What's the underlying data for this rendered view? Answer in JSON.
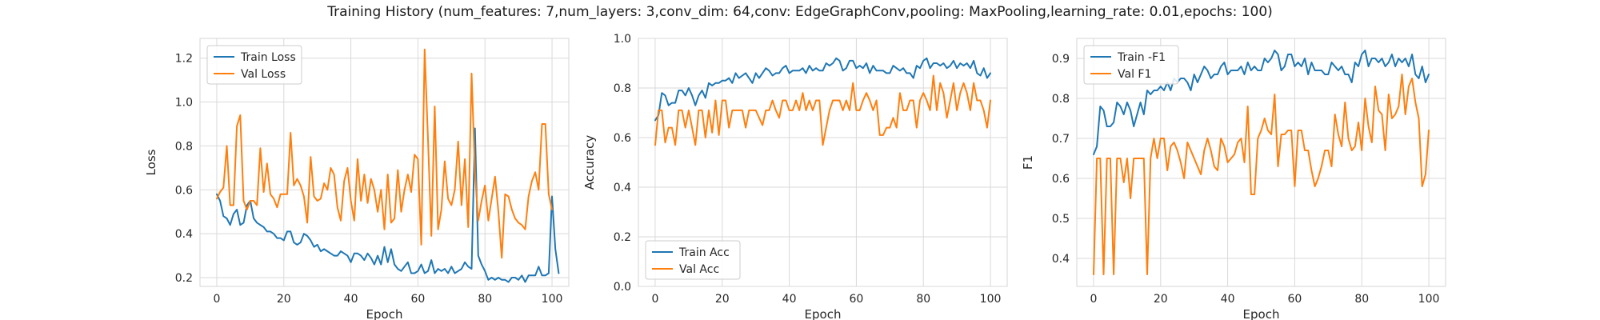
{
  "figure": {
    "title": "Training History (num_features: 7,num_layers: 3,conv_dim: 64,conv: EdgeGraphConv,pooling: MaxPooling,learning_rate: 0.01,epochs: 100)"
  },
  "colors": {
    "train": "#1f77b4",
    "val": "#ff7f0e"
  },
  "chart_data": [
    {
      "type": "line",
      "xlabel": "Epoch",
      "ylabel": "Loss",
      "xlim": [
        -5,
        105
      ],
      "ylim": [
        0.16,
        1.29
      ],
      "xticks": [
        0,
        20,
        40,
        60,
        80,
        100
      ],
      "yticks": [
        0.2,
        0.4,
        0.6,
        0.8,
        1.0,
        1.2
      ],
      "ytick_labels": [
        "0.2",
        "0.4",
        "0.6",
        "0.8",
        "1.0",
        "1.2"
      ],
      "grid": true,
      "legend": "top-left",
      "series": [
        {
          "name": "Train Loss",
          "color": "#1f77b4",
          "values": [
            0.58,
            0.55,
            0.48,
            0.47,
            0.44,
            0.49,
            0.51,
            0.44,
            0.45,
            0.53,
            0.55,
            0.47,
            0.45,
            0.44,
            0.43,
            0.41,
            0.41,
            0.4,
            0.38,
            0.38,
            0.37,
            0.41,
            0.41,
            0.36,
            0.35,
            0.36,
            0.4,
            0.39,
            0.37,
            0.34,
            0.35,
            0.32,
            0.33,
            0.32,
            0.31,
            0.3,
            0.3,
            0.32,
            0.31,
            0.3,
            0.27,
            0.31,
            0.31,
            0.3,
            0.28,
            0.31,
            0.29,
            0.26,
            0.3,
            0.26,
            0.34,
            0.27,
            0.33,
            0.26,
            0.24,
            0.23,
            0.25,
            0.27,
            0.22,
            0.22,
            0.23,
            0.26,
            0.22,
            0.23,
            0.28,
            0.22,
            0.24,
            0.23,
            0.24,
            0.22,
            0.25,
            0.22,
            0.23,
            0.24,
            0.27,
            0.25,
            0.24,
            0.88,
            0.3,
            0.26,
            0.23,
            0.19,
            0.2,
            0.19,
            0.2,
            0.19,
            0.19,
            0.18,
            0.2,
            0.2,
            0.19,
            0.21,
            0.18,
            0.21,
            0.21,
            0.21,
            0.25,
            0.21,
            0.21,
            0.22,
            0.57,
            0.33,
            0.22
          ]
        },
        {
          "name": "Val Loss",
          "color": "#ff7f0e",
          "values": [
            0.56,
            0.59,
            0.61,
            0.8,
            0.53,
            0.53,
            0.89,
            0.94,
            0.55,
            0.51,
            0.55,
            0.55,
            0.53,
            0.79,
            0.59,
            0.72,
            0.58,
            0.56,
            0.52,
            0.58,
            0.58,
            0.58,
            0.86,
            0.62,
            0.65,
            0.62,
            0.57,
            0.45,
            0.75,
            0.57,
            0.55,
            0.56,
            0.63,
            0.6,
            0.7,
            0.67,
            0.52,
            0.46,
            0.64,
            0.7,
            0.55,
            0.46,
            0.74,
            0.55,
            0.67,
            0.54,
            0.65,
            0.6,
            0.5,
            0.6,
            0.42,
            0.67,
            0.45,
            0.47,
            0.69,
            0.5,
            0.6,
            0.67,
            0.59,
            0.76,
            0.74,
            0.35,
            1.24,
            0.83,
            0.39,
            0.98,
            0.42,
            0.51,
            0.73,
            0.56,
            0.53,
            0.6,
            0.82,
            0.53,
            0.74,
            0.43,
            1.13,
            0.68,
            0.46,
            0.55,
            0.62,
            0.46,
            0.56,
            0.66,
            0.5,
            0.29,
            0.58,
            0.57,
            0.51,
            0.47,
            0.45,
            0.44,
            0.42,
            0.57,
            0.64,
            0.68,
            0.6,
            0.9,
            0.9,
            0.58,
            0.51
          ]
        }
      ]
    },
    {
      "type": "line",
      "xlabel": "Epoch",
      "ylabel": "Accuracy",
      "xlim": [
        -5,
        105
      ],
      "ylim": [
        0.0,
        1.0
      ],
      "xticks": [
        0,
        20,
        40,
        60,
        80,
        100
      ],
      "yticks": [
        0.0,
        0.2,
        0.4,
        0.6,
        0.8,
        1.0
      ],
      "ytick_labels": [
        "0.0",
        "0.2",
        "0.4",
        "0.6",
        "0.8",
        "1.0"
      ],
      "grid": true,
      "legend": "bottom-left",
      "series": [
        {
          "name": "Train Acc",
          "color": "#1f77b4",
          "values": [
            0.67,
            0.69,
            0.78,
            0.77,
            0.73,
            0.74,
            0.74,
            0.79,
            0.79,
            0.77,
            0.8,
            0.77,
            0.73,
            0.77,
            0.79,
            0.76,
            0.82,
            0.81,
            0.82,
            0.82,
            0.83,
            0.83,
            0.84,
            0.82,
            0.86,
            0.84,
            0.85,
            0.86,
            0.84,
            0.82,
            0.86,
            0.84,
            0.86,
            0.88,
            0.87,
            0.85,
            0.86,
            0.86,
            0.88,
            0.89,
            0.86,
            0.87,
            0.87,
            0.87,
            0.88,
            0.86,
            0.89,
            0.87,
            0.88,
            0.87,
            0.87,
            0.9,
            0.89,
            0.9,
            0.92,
            0.91,
            0.87,
            0.88,
            0.91,
            0.91,
            0.88,
            0.89,
            0.88,
            0.9,
            0.86,
            0.89,
            0.87,
            0.87,
            0.87,
            0.86,
            0.86,
            0.89,
            0.88,
            0.87,
            0.88,
            0.86,
            0.86,
            0.84,
            0.89,
            0.88,
            0.91,
            0.92,
            0.88,
            0.9,
            0.9,
            0.89,
            0.9,
            0.88,
            0.89,
            0.91,
            0.88,
            0.9,
            0.89,
            0.9,
            0.88,
            0.91,
            0.86,
            0.85,
            0.88,
            0.84,
            0.86
          ]
        },
        {
          "name": "Val Acc",
          "color": "#ff7f0e",
          "values": [
            0.57,
            0.71,
            0.71,
            0.58,
            0.64,
            0.64,
            0.57,
            0.71,
            0.71,
            0.64,
            0.71,
            0.64,
            0.57,
            0.71,
            0.71,
            0.6,
            0.71,
            0.62,
            0.75,
            0.61,
            0.75,
            0.75,
            0.64,
            0.71,
            0.71,
            0.71,
            0.71,
            0.64,
            0.71,
            0.71,
            0.71,
            0.68,
            0.65,
            0.71,
            0.71,
            0.75,
            0.71,
            0.68,
            0.75,
            0.75,
            0.71,
            0.71,
            0.75,
            0.71,
            0.78,
            0.71,
            0.75,
            0.71,
            0.75,
            0.75,
            0.57,
            0.64,
            0.71,
            0.75,
            0.75,
            0.75,
            0.71,
            0.75,
            0.71,
            0.82,
            0.71,
            0.71,
            0.75,
            0.78,
            0.75,
            0.71,
            0.75,
            0.61,
            0.61,
            0.64,
            0.64,
            0.68,
            0.64,
            0.78,
            0.71,
            0.71,
            0.75,
            0.75,
            0.64,
            0.75,
            0.78,
            0.75,
            0.71,
            0.85,
            0.71,
            0.82,
            0.78,
            0.68,
            0.75,
            0.82,
            0.71,
            0.78,
            0.82,
            0.78,
            0.71,
            0.82,
            0.75,
            0.75,
            0.71,
            0.64,
            0.75
          ]
        }
      ]
    },
    {
      "type": "line",
      "xlabel": "Epoch",
      "ylabel": "F1",
      "xlim": [
        -5,
        105
      ],
      "ylim": [
        0.33,
        0.95
      ],
      "xticks": [
        0,
        20,
        40,
        60,
        80,
        100
      ],
      "yticks": [
        0.4,
        0.5,
        0.6,
        0.7,
        0.8,
        0.9
      ],
      "ytick_labels": [
        "0.4",
        "0.5",
        "0.6",
        "0.7",
        "0.8",
        "0.9"
      ],
      "grid": true,
      "legend": "top-left",
      "series": [
        {
          "name": "Train -F1",
          "color": "#1f77b4",
          "values": [
            0.66,
            0.68,
            0.78,
            0.77,
            0.73,
            0.73,
            0.74,
            0.79,
            0.78,
            0.76,
            0.79,
            0.77,
            0.73,
            0.76,
            0.79,
            0.76,
            0.82,
            0.81,
            0.82,
            0.82,
            0.83,
            0.82,
            0.84,
            0.82,
            0.85,
            0.84,
            0.85,
            0.85,
            0.84,
            0.82,
            0.86,
            0.84,
            0.86,
            0.88,
            0.87,
            0.85,
            0.86,
            0.86,
            0.88,
            0.89,
            0.86,
            0.87,
            0.87,
            0.87,
            0.88,
            0.86,
            0.89,
            0.87,
            0.88,
            0.87,
            0.87,
            0.9,
            0.89,
            0.9,
            0.92,
            0.91,
            0.87,
            0.88,
            0.91,
            0.91,
            0.88,
            0.89,
            0.88,
            0.9,
            0.86,
            0.89,
            0.87,
            0.87,
            0.87,
            0.86,
            0.86,
            0.89,
            0.88,
            0.87,
            0.88,
            0.86,
            0.86,
            0.84,
            0.89,
            0.88,
            0.91,
            0.92,
            0.88,
            0.9,
            0.9,
            0.89,
            0.9,
            0.88,
            0.89,
            0.91,
            0.88,
            0.9,
            0.89,
            0.9,
            0.88,
            0.91,
            0.86,
            0.85,
            0.88,
            0.84,
            0.86
          ]
        },
        {
          "name": "Val F1",
          "color": "#ff7f0e",
          "values": [
            0.36,
            0.65,
            0.65,
            0.36,
            0.65,
            0.65,
            0.36,
            0.65,
            0.65,
            0.59,
            0.65,
            0.55,
            0.65,
            0.65,
            0.65,
            0.65,
            0.36,
            0.65,
            0.7,
            0.65,
            0.7,
            0.7,
            0.62,
            0.68,
            0.69,
            0.67,
            0.64,
            0.6,
            0.69,
            0.67,
            0.65,
            0.63,
            0.61,
            0.67,
            0.7,
            0.67,
            0.63,
            0.62,
            0.7,
            0.68,
            0.64,
            0.65,
            0.66,
            0.69,
            0.7,
            0.64,
            0.78,
            0.56,
            0.56,
            0.7,
            0.72,
            0.75,
            0.72,
            0.71,
            0.81,
            0.63,
            0.71,
            0.71,
            0.72,
            0.72,
            0.58,
            0.72,
            0.72,
            0.67,
            0.67,
            0.62,
            0.58,
            0.6,
            0.63,
            0.67,
            0.67,
            0.63,
            0.76,
            0.71,
            0.68,
            0.79,
            0.7,
            0.67,
            0.68,
            0.74,
            0.67,
            0.8,
            0.73,
            0.69,
            0.83,
            0.77,
            0.76,
            0.67,
            0.81,
            0.75,
            0.76,
            0.78,
            0.86,
            0.76,
            0.83,
            0.85,
            0.79,
            0.75,
            0.58,
            0.61,
            0.72
          ]
        }
      ]
    }
  ]
}
